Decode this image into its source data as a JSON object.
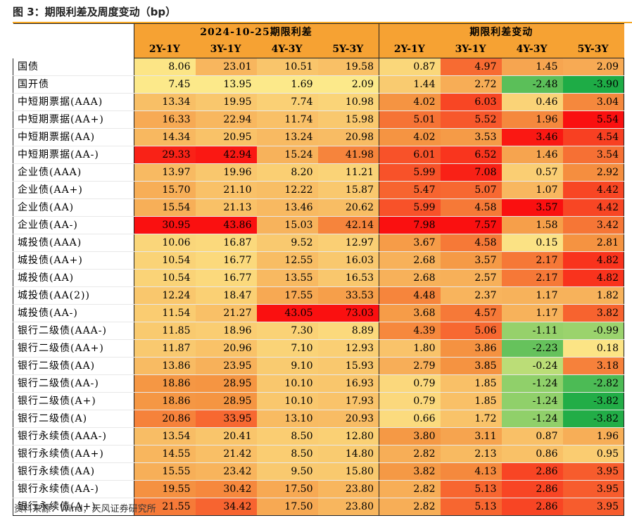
{
  "title": "图 3：期限利差及周度变动（bp）",
  "source": "资料来源：Wind，天风证券研究所",
  "header": {
    "group1": "2024-10-25期限利差",
    "group2": "期限利差变动",
    "columns": [
      "2Y-1Y",
      "3Y-1Y",
      "4Y-3Y",
      "5Y-3Y",
      "2Y-1Y",
      "3Y-1Y",
      "4Y-3Y",
      "5Y-3Y"
    ]
  },
  "rows": [
    {
      "label": "国债",
      "spread": [
        "8.06",
        "23.01",
        "10.51",
        "19.58"
      ],
      "change": [
        "0.87",
        "4.97",
        "1.45",
        "2.09"
      ]
    },
    {
      "label": "国开债",
      "spread": [
        "7.45",
        "13.95",
        "1.69",
        "2.09"
      ],
      "change": [
        "1.44",
        "2.72",
        "-2.48",
        "-3.90"
      ]
    },
    {
      "label": "中短期票据(AAA)",
      "spread": [
        "13.34",
        "19.95",
        "7.74",
        "10.98"
      ],
      "change": [
        "4.02",
        "6.03",
        "0.46",
        "3.04"
      ]
    },
    {
      "label": "中短期票据(AA+)",
      "spread": [
        "16.33",
        "22.94",
        "11.74",
        "15.98"
      ],
      "change": [
        "5.01",
        "5.52",
        "1.96",
        "5.54"
      ]
    },
    {
      "label": "中短期票据(AA)",
      "spread": [
        "14.34",
        "20.95",
        "13.24",
        "20.98"
      ],
      "change": [
        "4.02",
        "3.53",
        "3.46",
        "4.54"
      ]
    },
    {
      "label": "中短期票据(AA-)",
      "spread": [
        "29.33",
        "42.94",
        "15.24",
        "41.98"
      ],
      "change": [
        "6.01",
        "6.52",
        "1.46",
        "3.54"
      ]
    },
    {
      "label": "企业债(AAA)",
      "spread": [
        "13.97",
        "19.96",
        "8.20",
        "11.21"
      ],
      "change": [
        "5.99",
        "7.08",
        "0.57",
        "2.92"
      ]
    },
    {
      "label": "企业债(AA+)",
      "spread": [
        "15.70",
        "21.10",
        "12.22",
        "15.87"
      ],
      "change": [
        "5.47",
        "5.07",
        "1.07",
        "4.42"
      ]
    },
    {
      "label": "企业债(AA)",
      "spread": [
        "15.54",
        "21.13",
        "13.46",
        "20.62"
      ],
      "change": [
        "5.99",
        "4.58",
        "3.57",
        "4.42"
      ]
    },
    {
      "label": "企业债(AA-)",
      "spread": [
        "30.95",
        "43.86",
        "15.03",
        "42.14"
      ],
      "change": [
        "7.98",
        "7.57",
        "1.58",
        "3.42"
      ]
    },
    {
      "label": "城投债(AAA)",
      "spread": [
        "10.06",
        "16.87",
        "9.52",
        "12.97"
      ],
      "change": [
        "3.67",
        "4.58",
        "0.15",
        "2.81"
      ]
    },
    {
      "label": "城投债(AA+)",
      "spread": [
        "10.54",
        "16.77",
        "12.55",
        "16.03"
      ],
      "change": [
        "2.68",
        "3.57",
        "2.17",
        "4.82"
      ]
    },
    {
      "label": "城投债(AA)",
      "spread": [
        "10.54",
        "16.77",
        "13.55",
        "16.53"
      ],
      "change": [
        "2.68",
        "2.57",
        "2.17",
        "4.82"
      ]
    },
    {
      "label": "城投债(AA(2))",
      "spread": [
        "12.24",
        "18.47",
        "17.55",
        "33.53"
      ],
      "change": [
        "4.48",
        "2.37",
        "1.17",
        "1.82"
      ]
    },
    {
      "label": "城投债(AA-)",
      "spread": [
        "11.54",
        "21.27",
        "43.05",
        "73.03"
      ],
      "change": [
        "3.68",
        "4.57",
        "1.17",
        "3.82"
      ]
    },
    {
      "label": "银行二级债(AAA-)",
      "spread": [
        "11.85",
        "18.96",
        "7.30",
        "8.89"
      ],
      "change": [
        "4.39",
        "5.06",
        "-1.11",
        "-0.99"
      ]
    },
    {
      "label": "银行二级债(AA+)",
      "spread": [
        "11.87",
        "20.96",
        "7.10",
        "12.93"
      ],
      "change": [
        "1.80",
        "3.86",
        "-2.23",
        "0.18"
      ]
    },
    {
      "label": "银行二级债(AA)",
      "spread": [
        "13.86",
        "23.95",
        "9.10",
        "15.93"
      ],
      "change": [
        "2.79",
        "3.85",
        "-0.24",
        "3.18"
      ]
    },
    {
      "label": "银行二级债(AA-)",
      "spread": [
        "18.86",
        "28.95",
        "10.10",
        "16.93"
      ],
      "change": [
        "0.79",
        "1.85",
        "-1.24",
        "-2.82"
      ]
    },
    {
      "label": "银行二级债(A+)",
      "spread": [
        "18.86",
        "28.95",
        "10.10",
        "17.93"
      ],
      "change": [
        "0.79",
        "1.85",
        "-1.24",
        "-3.82"
      ]
    },
    {
      "label": "银行二级债(A)",
      "spread": [
        "20.86",
        "33.95",
        "13.10",
        "20.93"
      ],
      "change": [
        "0.66",
        "1.72",
        "-1.24",
        "-3.82"
      ]
    },
    {
      "label": "银行永续债(AAA-)",
      "spread": [
        "13.54",
        "20.41",
        "8.50",
        "12.80"
      ],
      "change": [
        "3.80",
        "3.11",
        "0.87",
        "1.96"
      ]
    },
    {
      "label": "银行永续债(AA+)",
      "spread": [
        "14.55",
        "21.42",
        "8.50",
        "14.80"
      ],
      "change": [
        "2.82",
        "2.13",
        "0.86",
        "0.95"
      ]
    },
    {
      "label": "银行永续债(AA)",
      "spread": [
        "15.55",
        "23.42",
        "9.50",
        "15.80"
      ],
      "change": [
        "3.82",
        "4.13",
        "2.86",
        "3.95"
      ]
    },
    {
      "label": "银行永续债(AA-)",
      "spread": [
        "19.55",
        "30.42",
        "17.50",
        "23.80"
      ],
      "change": [
        "2.82",
        "5.13",
        "2.86",
        "3.95"
      ]
    },
    {
      "label": "银行永续债(A+)",
      "spread": [
        "21.55",
        "34.42",
        "17.50",
        "23.80"
      ],
      "change": [
        "2.82",
        "5.13",
        "2.86",
        "3.95"
      ]
    }
  ],
  "section_starts": [
    2,
    6,
    10,
    15,
    21
  ],
  "heat_colors": {
    "low": "#fce98a",
    "mid": "#f59542",
    "high": "#fa1010",
    "neg_low": "#c5e07a",
    "neg_high": "#1aab45"
  }
}
